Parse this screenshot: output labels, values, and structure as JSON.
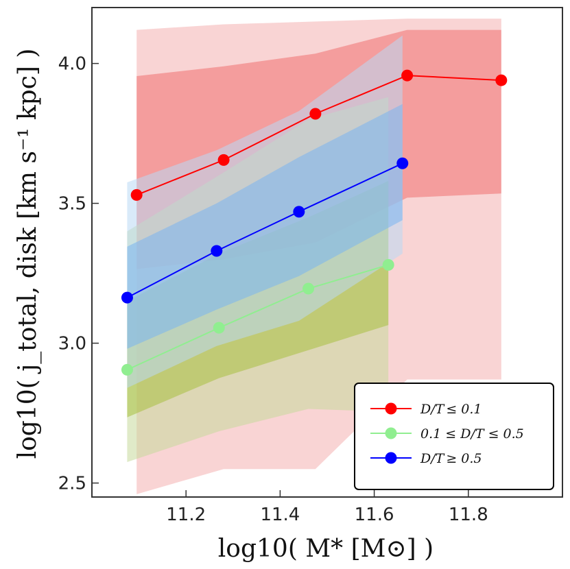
{
  "chart_data": {
    "type": "line",
    "xlabel": "log10( M* [M⊙] )",
    "ylabel": "log10( j_total, disk [km s⁻¹ kpc] )",
    "xlim": [
      11.0,
      12.0
    ],
    "ylim": [
      2.45,
      4.2
    ],
    "xticks": [
      11.2,
      11.4,
      11.6,
      11.8
    ],
    "xtick_labels": [
      "11.2",
      "11.4",
      "11.6",
      "11.8"
    ],
    "yticks": [
      2.5,
      3.0,
      3.5,
      4.0
    ],
    "ytick_labels": [
      "2.5",
      "3.0",
      "3.5",
      "4.0"
    ],
    "legend_position": "bottom-right",
    "series": [
      {
        "name": "D/T ≤ 0.1",
        "label_parts": [
          "D/T",
          "≤ 0.1"
        ],
        "color": "#ff0000",
        "x": [
          11.095,
          11.28,
          11.475,
          11.67,
          11.87
        ],
        "y": [
          3.53,
          3.655,
          3.82,
          3.957,
          3.94
        ],
        "band_inner_upper": [
          3.955,
          3.99,
          4.035,
          4.12,
          4.12
        ],
        "band_inner_lower": [
          3.265,
          3.3,
          3.36,
          3.52,
          3.535
        ],
        "band_outer_upper": [
          4.12,
          4.14,
          4.15,
          4.16,
          4.16
        ],
        "band_outer_lower": [
          2.46,
          2.55,
          2.55,
          2.87,
          2.87
        ],
        "inner_color": "#f07070",
        "outer_color": "#f4b0b0"
      },
      {
        "name": "0.1 ≤ D/T ≤ 0.5",
        "label_parts": [
          "0.1 ≤ D/T ≤ 0.5"
        ],
        "color": "#90ee90",
        "x": [
          11.075,
          11.27,
          11.46,
          11.63
        ],
        "y": [
          2.905,
          3.055,
          3.195,
          3.28
        ],
        "band_inner_upper": [
          3.15,
          3.32,
          3.45,
          3.58
        ],
        "band_inner_lower": [
          2.735,
          2.875,
          2.975,
          3.065
        ],
        "band_outer_upper": [
          3.4,
          3.6,
          3.8,
          3.88
        ],
        "band_outer_lower": [
          2.575,
          2.685,
          2.765,
          2.755
        ],
        "inner_color": "#a8c040",
        "outer_color": "#c6d89a"
      },
      {
        "name": "D/T ≥ 0.5",
        "label_parts": [
          "D/T",
          "≥ 0.5"
        ],
        "color": "#0000ff",
        "x": [
          11.075,
          11.265,
          11.44,
          11.66
        ],
        "y": [
          3.163,
          3.33,
          3.47,
          3.643
        ],
        "band_inner_upper": [
          3.345,
          3.5,
          3.665,
          3.855
        ],
        "band_inner_lower": [
          2.98,
          3.12,
          3.24,
          3.44
        ],
        "band_outer_upper": [
          3.575,
          3.69,
          3.83,
          4.1
        ],
        "band_outer_lower": [
          2.84,
          2.99,
          3.08,
          3.32
        ],
        "inner_color": "#7ab4f0",
        "outer_color": "#b9d8f4"
      }
    ]
  }
}
